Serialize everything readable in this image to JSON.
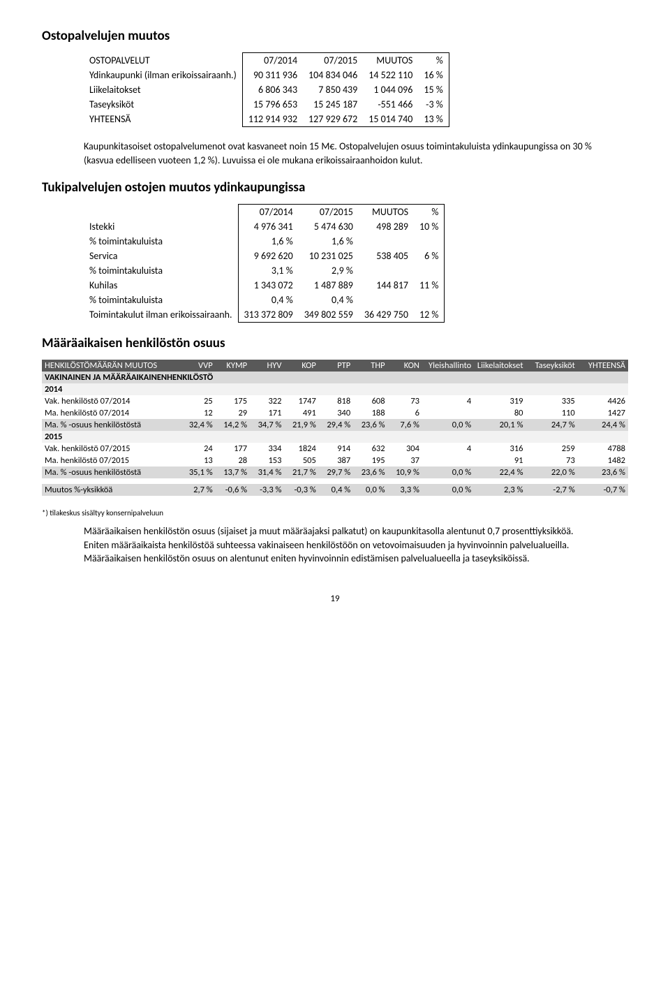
{
  "section1": {
    "title": "Ostopalvelujen muutos",
    "header": [
      "OSTOPALVELUT",
      "07/2014",
      "07/2015",
      "MUUTOS",
      "%"
    ],
    "rows": [
      {
        "label": "Ydinkaupunki (ilman erikoissairaanh.)",
        "a": "90 311 936",
        "b": "104 834 046",
        "c": "14 522 110",
        "d": "16 %"
      },
      {
        "label": "Liikelaitokset",
        "a": "6 806 343",
        "b": "7 850 439",
        "c": "1 044 096",
        "d": "15 %"
      },
      {
        "label": "Taseyksiköt",
        "a": "15 796 653",
        "b": "15 245 187",
        "c": "-551 466",
        "d": "-3 %"
      },
      {
        "label": "YHTEENSÄ",
        "a": "112 914 932",
        "b": "127 929 672",
        "c": "15 014 740",
        "d": "13 %"
      }
    ],
    "paragraph": "Kaupunkitasoiset ostopalvelumenot ovat kasvaneet noin 15 M€. Ostopalvelujen osuus toimintakuluista ydinkaupungissa on 30 % (kasvua edelliseen vuoteen 1,2 %). Luvuissa ei ole mukana erikoissairaanhoidon kulut."
  },
  "section2": {
    "title": "Tukipalvelujen ostojen muutos ydinkaupungissa",
    "header": [
      "",
      "07/2014",
      "07/2015",
      "MUUTOS",
      "%"
    ],
    "rows": [
      {
        "label": "Istekki",
        "a": "4 976 341",
        "b": "5 474 630",
        "c": "498 289",
        "d": "10 %"
      },
      {
        "label": "   % toimintakuluista",
        "a": "1,6 %",
        "b": "1,6 %",
        "c": "",
        "d": ""
      },
      {
        "label": "Servica",
        "a": "9 692 620",
        "b": "10 231 025",
        "c": "538 405",
        "d": "6 %"
      },
      {
        "label": "   % toimintakuluista",
        "a": "3,1 %",
        "b": "2,9 %",
        "c": "",
        "d": ""
      },
      {
        "label": "Kuhilas",
        "a": "1 343 072",
        "b": "1 487 889",
        "c": "144 817",
        "d": "11 %"
      },
      {
        "label": "   % toimintakuluista",
        "a": "0,4 %",
        "b": "0,4 %",
        "c": "",
        "d": ""
      },
      {
        "label": "Toimintakulut ilman erikoissairaanh.",
        "a": "313 372 809",
        "b": "349 802 559",
        "c": "36 429 750",
        "d": "12 %"
      }
    ]
  },
  "section3": {
    "title": "Määräaikaisen henkilöstön osuus",
    "columns": [
      "HENKILÖSTÖMÄÄRÄN MUUTOS",
      "VVP",
      "KYMP",
      "HYV",
      "KOP",
      "PTP",
      "THP",
      "KON",
      "Yleishallinto",
      "Liikelaitokset",
      "Taseyksiköt",
      "YHTEENSÄ"
    ],
    "subheader": "VAKINAINEN JA MÄÄRÄAIKAINENHENKILÖSTÖ",
    "groups": [
      {
        "year": "2014",
        "rows": [
          {
            "label": "Vak. henkilöstö 07/2014",
            "vals": [
              "25",
              "175",
              "322",
              "1747",
              "818",
              "608",
              "73",
              "4",
              "319",
              "335",
              "4426"
            ]
          },
          {
            "label": "Ma. henkilöstö 07/2014",
            "vals": [
              "12",
              "29",
              "171",
              "491",
              "340",
              "188",
              "6",
              "",
              "80",
              "110",
              "1427"
            ]
          },
          {
            "label": "Ma. % -osuus henkilöstöstä",
            "vals": [
              "32,4 %",
              "14,2 %",
              "34,7 %",
              "21,9 %",
              "29,4 %",
              "23,6 %",
              "7,6 %",
              "0,0 %",
              "20,1 %",
              "24,7 %",
              "24,4 %"
            ],
            "grey": true
          }
        ]
      },
      {
        "year": "2015",
        "rows": [
          {
            "label": "Vak. henkilöstö 07/2015",
            "vals": [
              "24",
              "177",
              "334",
              "1824",
              "914",
              "632",
              "304",
              "4",
              "316",
              "259",
              "4788"
            ]
          },
          {
            "label": "Ma. henkilöstö 07/2015",
            "vals": [
              "13",
              "28",
              "153",
              "505",
              "387",
              "195",
              "37",
              "",
              "91",
              "73",
              "1482"
            ]
          },
          {
            "label": "Ma. % -osuus henkilöstöstä",
            "vals": [
              "35,1 %",
              "13,7 %",
              "31,4 %",
              "21,7 %",
              "29,7 %",
              "23,6 %",
              "10,9 %",
              "0,0 %",
              "22,4 %",
              "22,0 %",
              "23,6 %"
            ],
            "grey": true
          }
        ]
      }
    ],
    "change": {
      "label": "Muutos %-yksikköä",
      "vals": [
        "2,7 %",
        "-0,6 %",
        "-3,3 %",
        "-0,3 %",
        "0,4 %",
        "0,0 %",
        "3,3 %",
        "0,0 %",
        "2,3 %",
        "-2,7 %",
        "-0,7 %"
      ]
    },
    "footnote": "*) tilakeskus sisältyy konsernipalveluun",
    "paragraph": "Määräaikaisen henkilöstön osuus (sijaiset ja muut määräajaksi palkatut) on kaupunkitasolla alentunut 0,7 prosenttiyksikköä. Eniten määräaikaista henkilöstöä suhteessa vakinaiseen henkilöstöön on vetovoimaisuuden ja hyvinvoinnin palvelualueilla. Määräaikaisen henkilöstön osuus on alentunut eniten hyvinvoinnin edistämisen palvelualueella ja taseyksiköissä."
  },
  "page": "19"
}
